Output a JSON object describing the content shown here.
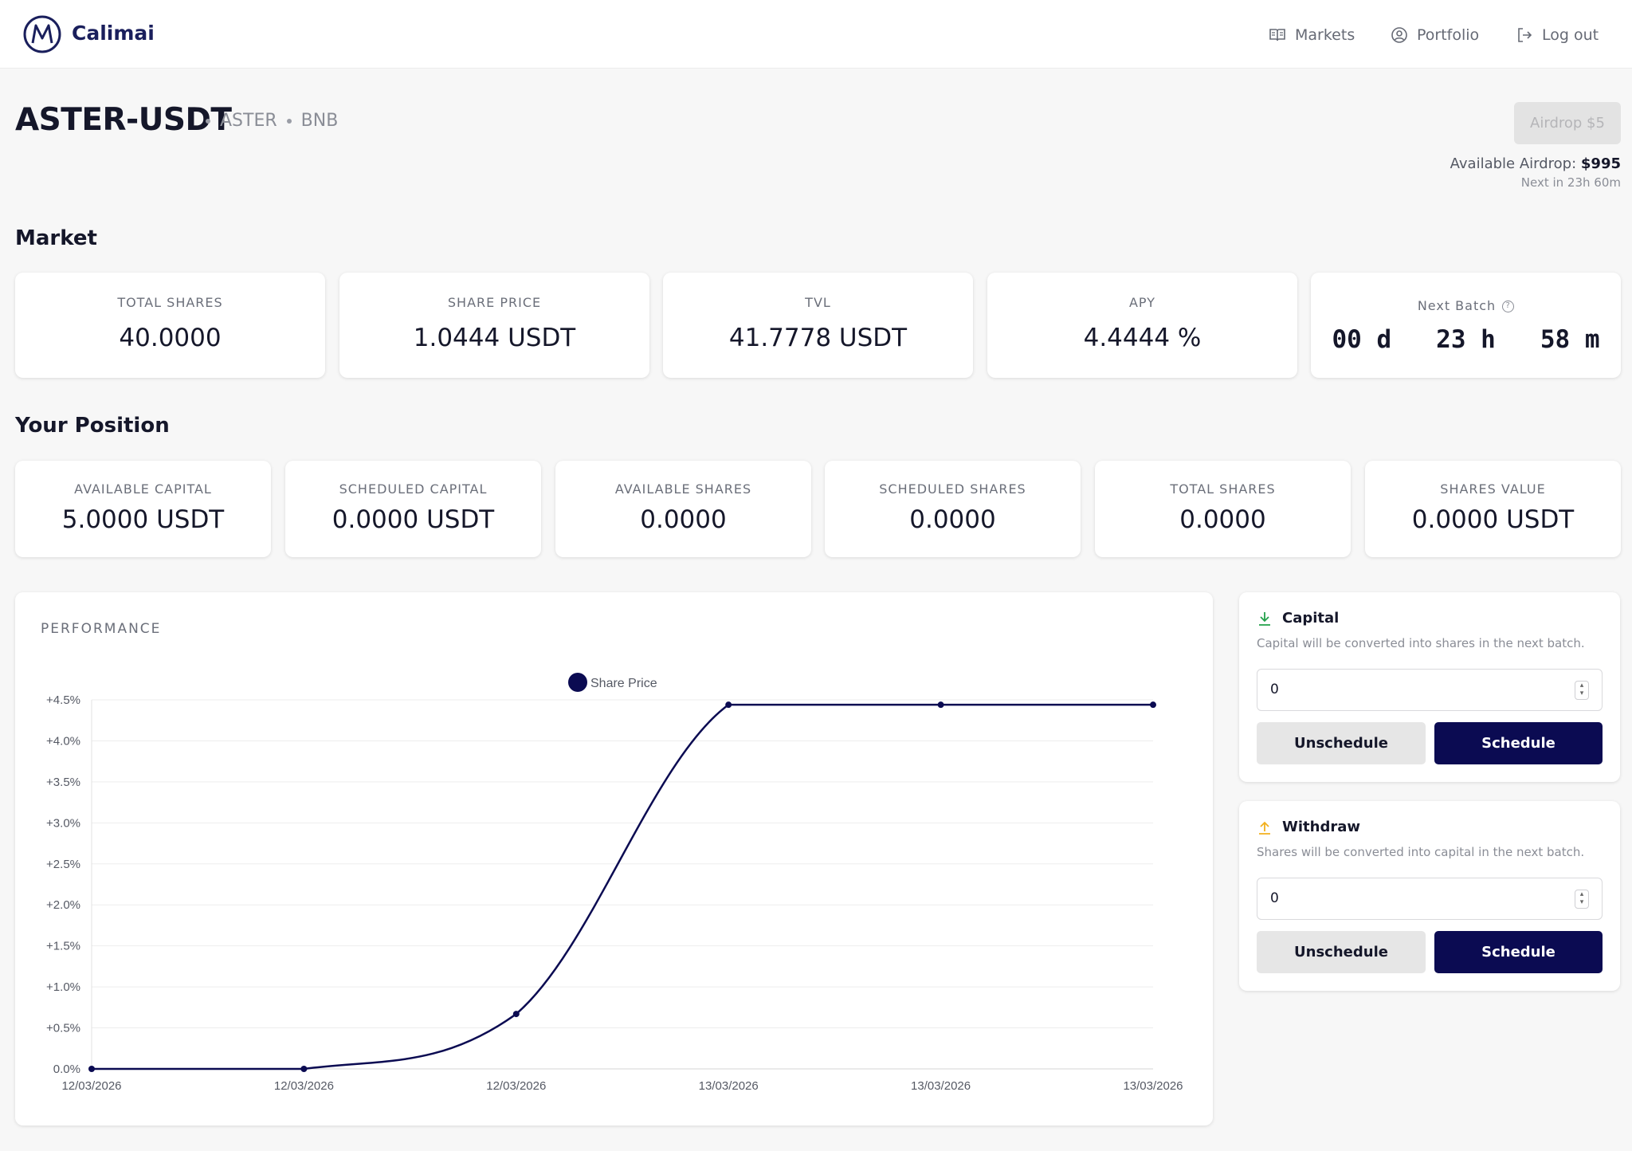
{
  "app": {
    "name": "Calimai",
    "nav": [
      {
        "label": "Markets",
        "icon": "book-open-icon"
      },
      {
        "label": "Portfolio",
        "icon": "user-circle-icon"
      },
      {
        "label": "Log out",
        "icon": "logout-icon"
      }
    ]
  },
  "pair": {
    "title": "ASTER-USDT",
    "tags": [
      "ASTER",
      "BNB"
    ]
  },
  "airdrop": {
    "button_label": "Airdrop $5",
    "available_label": "Available Airdrop:",
    "available_value": "$995",
    "next": "Next in 23h 60m"
  },
  "market": {
    "title": "Market",
    "stats": [
      {
        "label": "TOTAL SHARES",
        "value": "40.0000"
      },
      {
        "label": "SHARE PRICE",
        "value": "1.0444 USDT"
      },
      {
        "label": "TVL",
        "value": "41.7778 USDT"
      },
      {
        "label": "APY",
        "value": "4.4444 %"
      }
    ],
    "next_batch": {
      "label": "Next Batch",
      "days": "00",
      "hours": "23",
      "minutes": "58",
      "d": "d",
      "h": "h",
      "m": "m"
    }
  },
  "position": {
    "title": "Your Position",
    "stats": [
      {
        "label": "AVAILABLE CAPITAL",
        "value": "5.0000 USDT"
      },
      {
        "label": "SCHEDULED CAPITAL",
        "value": "0.0000 USDT"
      },
      {
        "label": "AVAILABLE SHARES",
        "value": "0.0000"
      },
      {
        "label": "SCHEDULED SHARES",
        "value": "0.0000"
      },
      {
        "label": "TOTAL SHARES",
        "value": "0.0000"
      },
      {
        "label": "SHARES VALUE",
        "value": "0.0000 USDT"
      }
    ]
  },
  "performance": {
    "title": "PERFORMANCE"
  },
  "chart_data": {
    "type": "line",
    "title": "",
    "xlabel": "",
    "ylabel": "",
    "x": [
      "12/03/2026",
      "12/03/2026",
      "12/03/2026",
      "13/03/2026",
      "13/03/2026",
      "13/03/2026"
    ],
    "series": [
      {
        "name": "Share Price",
        "values": [
          0.0,
          0.0,
          0.67,
          4.44,
          4.44,
          4.44
        ],
        "color": "#0b0b52"
      }
    ],
    "ylim": [
      0,
      4.5
    ],
    "yticks": [
      "0.0%",
      "+0.5%",
      "+1.0%",
      "+1.5%",
      "+2.0%",
      "+2.5%",
      "+3.0%",
      "+3.5%",
      "+4.0%",
      "+4.5%"
    ],
    "grid": true,
    "legend_position": "top-center"
  },
  "capital_form": {
    "title": "Capital",
    "description": "Capital will be converted into shares in the next batch.",
    "value": "0",
    "unschedule_label": "Unschedule",
    "schedule_label": "Schedule",
    "icon_color": "#22a04a"
  },
  "withdraw_form": {
    "title": "Withdraw",
    "description": "Shares will be converted into capital in the next batch.",
    "value": "0",
    "unschedule_label": "Unschedule",
    "schedule_label": "Schedule",
    "icon_color": "#f2b01e"
  },
  "colors": {
    "accent": "#0b0b52",
    "brand": "#1a1f5c"
  }
}
